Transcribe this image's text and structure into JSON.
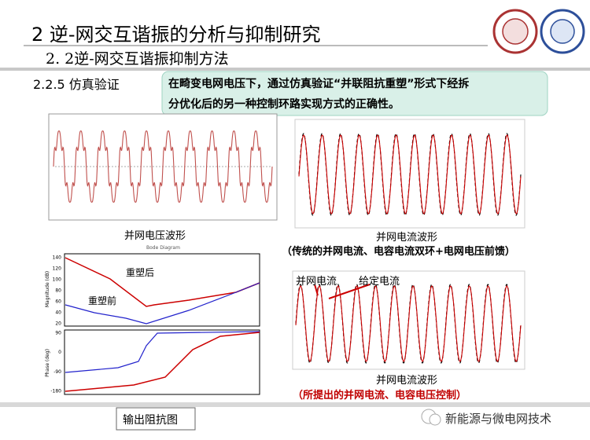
{
  "header": {
    "title": "2 逆-网交互谐振的分析与抑制研究",
    "subtitle": "2. 2逆-网交互谐振抑制方法"
  },
  "section": "2.2.5 仿真验证",
  "callout": [
    "在畸变电网电压下，通过仿真验证“并联阻抗重塑”形式下经拆",
    "分优化后的另一种控制环路实现方式的正确性。"
  ],
  "figures": [
    {
      "caption": "并网电压波形"
    },
    {
      "caption": "并网电流波形",
      "note": "（传统的并网电流、电容电流双环+电网电压前馈）"
    },
    {
      "caption": "输出阻抗图",
      "title": "Bode Diagram",
      "labels": [
        "重塑后",
        "重塑前"
      ],
      "magnitude": {
        "label": "Magnitude (dB)",
        "ticks": [
          "140",
          "120",
          "100",
          "80",
          "60",
          "40",
          "20"
        ]
      },
      "phase": {
        "label": "Phase (deg)",
        "ticks": [
          "90",
          "0",
          "-90",
          "-180"
        ]
      }
    },
    {
      "caption": "并网电流波形",
      "note": "（所提出的并网电流、电容电压控制）",
      "labels": [
        "并网电流",
        "给定电流"
      ]
    }
  ],
  "watermark": "新能源与微电网技术"
}
